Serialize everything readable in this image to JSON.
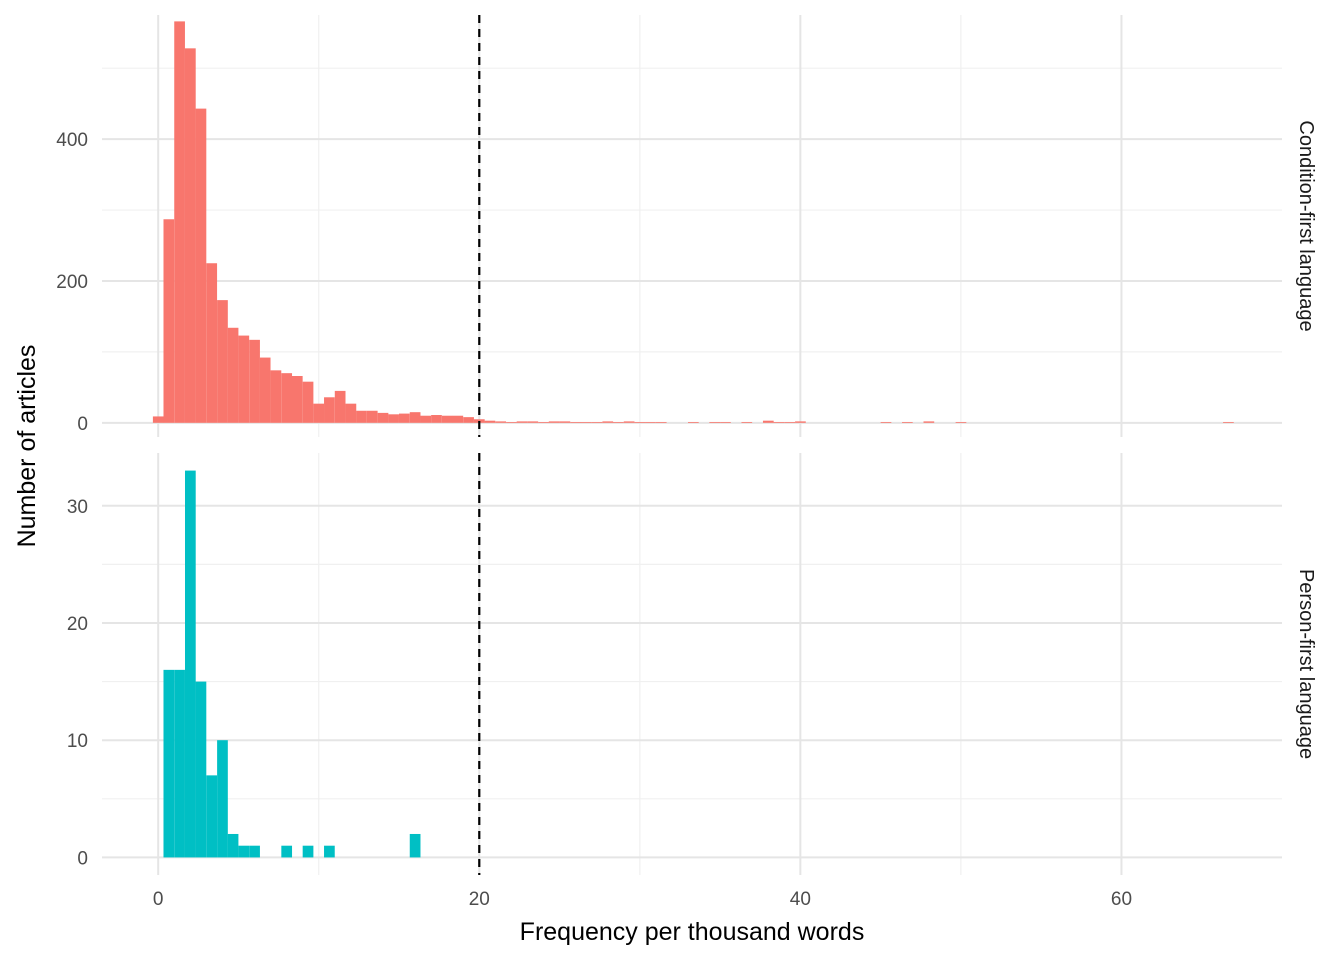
{
  "chart_data": {
    "type": "bar",
    "subtype": "faceted-histogram",
    "xlabel": "Frequency per thousand words",
    "ylabel": "Number of articles",
    "xlim": [
      -3.5,
      70
    ],
    "x_ticks": [
      0,
      20,
      40,
      60
    ],
    "x_tick_labels": [
      "0",
      "20",
      "40",
      "60"
    ],
    "binwidth": 0.667,
    "reference_line": {
      "x": 20,
      "style": "dashed",
      "color": "#000000"
    },
    "grid": true,
    "panels": [
      {
        "strip_label": "Condition-first language",
        "color": "#F8766D",
        "ylim": [
          -20,
          575
        ],
        "y_ticks": [
          0,
          200,
          400
        ],
        "y_tick_labels": [
          "0",
          "200",
          "400"
        ],
        "bin_starts": [
          -0.33,
          0.33,
          1.0,
          1.67,
          2.33,
          3.0,
          3.67,
          4.33,
          5.0,
          5.67,
          6.33,
          7.0,
          7.67,
          8.33,
          9.0,
          9.67,
          10.33,
          11.0,
          11.67,
          12.33,
          13.0,
          13.67,
          14.33,
          15.0,
          15.67,
          16.33,
          17.0,
          17.67,
          18.33,
          19.0,
          19.67,
          20.33,
          21.0,
          21.67,
          22.33,
          23.0,
          23.67,
          24.33,
          25.0,
          25.67,
          26.33,
          27.0,
          27.67,
          28.33,
          29.0,
          29.67,
          30.33,
          31.0,
          33.0,
          34.33,
          35.0,
          36.33,
          37.67,
          38.33,
          39.0,
          39.67,
          45.0,
          46.33,
          47.67,
          49.67,
          66.33
        ],
        "values": [
          9,
          287,
          566,
          528,
          443,
          225,
          173,
          134,
          123,
          117,
          92,
          74,
          70,
          66,
          58,
          27,
          36,
          45,
          27,
          17,
          17,
          14,
          12,
          13,
          15,
          10,
          11,
          10,
          10,
          8,
          5,
          3,
          2,
          1,
          2,
          2,
          1,
          2,
          2,
          1,
          1,
          1,
          2,
          1,
          2,
          1,
          1,
          1,
          1,
          1,
          1,
          1,
          3,
          1,
          1,
          2,
          1,
          1,
          2,
          1,
          1
        ]
      },
      {
        "strip_label": "Person-first language",
        "color": "#00BFC4",
        "ylim": [
          -1.5,
          34.5
        ],
        "y_ticks": [
          0,
          10,
          20,
          30
        ],
        "y_tick_labels": [
          "0",
          "10",
          "20",
          "30"
        ],
        "bin_starts": [
          0.33,
          1.0,
          1.67,
          2.33,
          3.0,
          3.67,
          4.33,
          5.0,
          5.67,
          7.67,
          9.0,
          10.33,
          15.67
        ],
        "values": [
          16,
          16,
          33,
          15,
          7,
          10,
          2,
          1,
          1,
          1,
          1,
          1,
          2
        ]
      }
    ]
  }
}
